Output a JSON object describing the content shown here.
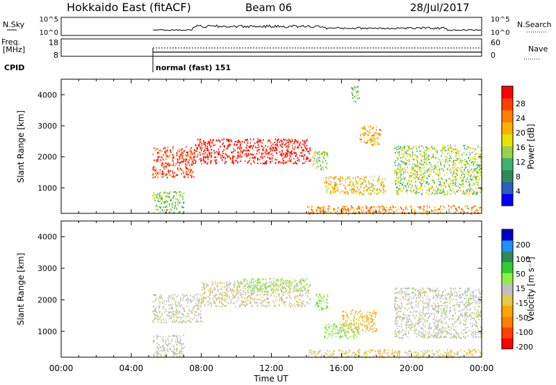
{
  "header": {
    "radar": "Hokkaido East (fitACF)",
    "beam": "Beam 06",
    "date": "28/Jul/2017"
  },
  "status": {
    "nsky_label": "N.Sky",
    "nsky_ticks": [
      "10^5",
      "10^0"
    ],
    "nsearch_label": "N.Search",
    "nsearch_ticks": [
      "10^5",
      "10^0"
    ],
    "freq_label": "Freq.",
    "freq_unit": "[MHz]",
    "freq_ticks": [
      "18",
      "8"
    ],
    "nave_label": "Nave",
    "nave_ticks": [
      "60",
      "0"
    ],
    "cpid_label": "CPID",
    "cpid_value": "normal (fast) 151"
  },
  "colors": {
    "power": [
      "#0000ff",
      "#2a5fbf",
      "#2e8b57",
      "#3cb371",
      "#98d24a",
      "#e6e600",
      "#ffb000",
      "#ff8000",
      "#ff4000",
      "#ff0000"
    ],
    "velocity": [
      "#ff0000",
      "#ff4000",
      "#ff8000",
      "#ffa500",
      "#e6c84a",
      "#c0c0c0",
      "#90ee40",
      "#32cd32",
      "#2e8b57",
      "#1e90ff",
      "#0000cd"
    ],
    "velocity_ground": "#c0c0c0",
    "cpid_line": "#000000"
  },
  "chart_data": [
    {
      "type": "heatmap",
      "name": "power",
      "xlabel": "",
      "ylabel": "Slant Range [km]",
      "x": [
        "00:00",
        "04:00",
        "08:00",
        "12:00",
        "16:00",
        "20:00",
        "00:00"
      ],
      "xlim": [
        0,
        24
      ],
      "ylim": [
        180,
        4500
      ],
      "yticks": [
        1000,
        2000,
        3000,
        4000
      ],
      "grid": false,
      "colorbar": {
        "label": "Power [dB]",
        "ticks": [
          "4",
          "8",
          "12",
          "16",
          "20",
          "24",
          "28"
        ],
        "range": [
          0,
          30
        ]
      },
      "regions": [
        {
          "t": [
            5.2,
            7.6
          ],
          "r": [
            1350,
            2350
          ],
          "value": 26
        },
        {
          "t": [
            7.6,
            14.2
          ],
          "r": [
            1800,
            2600
          ],
          "value": 29
        },
        {
          "t": [
            14.3,
            15.2
          ],
          "r": [
            1600,
            2200
          ],
          "value": 14
        },
        {
          "t": [
            15.0,
            18.5
          ],
          "r": [
            800,
            1400
          ],
          "value": 18
        },
        {
          "t": [
            17.0,
            18.2
          ],
          "r": [
            2400,
            3000
          ],
          "value": 20
        },
        {
          "t": [
            19.0,
            24.0
          ],
          "r": [
            800,
            2400
          ],
          "value": 14
        },
        {
          "t": [
            14.0,
            24.0
          ],
          "r": [
            180,
            450
          ],
          "value": 22
        },
        {
          "t": [
            16.5,
            17.0
          ],
          "r": [
            3800,
            4300
          ],
          "value": 12
        },
        {
          "t": [
            5.2,
            7.0
          ],
          "r": [
            200,
            900
          ],
          "value": 12
        }
      ]
    },
    {
      "type": "heatmap",
      "name": "velocity",
      "xlabel": "Time UT",
      "ylabel": "Slant Range [km]",
      "x": [
        "00:00",
        "04:00",
        "08:00",
        "12:00",
        "16:00",
        "20:00",
        "00:00"
      ],
      "xlim": [
        0,
        24
      ],
      "ylim": [
        180,
        4500
      ],
      "yticks": [
        1000,
        2000,
        3000,
        4000
      ],
      "grid": false,
      "colorbar": {
        "label": "Velocity [m s⁻¹]",
        "ticks": [
          "200",
          "100",
          "50",
          "15",
          "-15",
          "-50",
          "-100",
          "-200"
        ],
        "range": [
          -250,
          250
        ]
      },
      "regions": [
        {
          "t": [
            5.2,
            8.0
          ],
          "r": [
            1300,
            2200
          ],
          "value": 0
        },
        {
          "t": [
            8.0,
            14.2
          ],
          "r": [
            1800,
            2600
          ],
          "value": -20
        },
        {
          "t": [
            10.0,
            14.0
          ],
          "r": [
            2300,
            2700
          ],
          "value": 40
        },
        {
          "t": [
            14.5,
            15.2
          ],
          "r": [
            1700,
            2200
          ],
          "value": 60
        },
        {
          "t": [
            15.0,
            17.0
          ],
          "r": [
            800,
            1300
          ],
          "value": 45
        },
        {
          "t": [
            16.0,
            18.0
          ],
          "r": [
            1000,
            1700
          ],
          "value": -60
        },
        {
          "t": [
            19.0,
            24.0
          ],
          "r": [
            800,
            2400
          ],
          "value": 0
        },
        {
          "t": [
            14.0,
            24.0
          ],
          "r": [
            180,
            450
          ],
          "value": -40
        },
        {
          "t": [
            5.2,
            7.0
          ],
          "r": [
            200,
            900
          ],
          "value": 0
        }
      ]
    }
  ]
}
